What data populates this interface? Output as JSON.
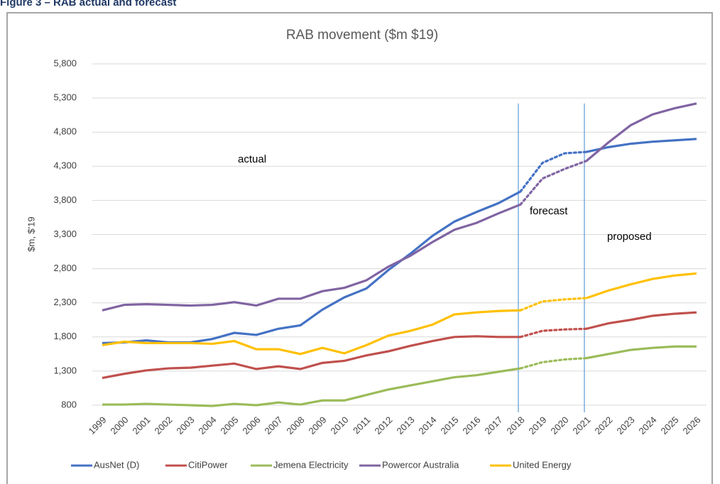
{
  "caption": "Figure 3 – RAB actual and forecast",
  "chart_data": {
    "type": "line",
    "title": "RAB movement ($m  $19)",
    "y_label": "$m, $'19",
    "categories": [
      "1999",
      "2000",
      "2001",
      "2002",
      "2003",
      "2004",
      "2005",
      "2006",
      "2007",
      "2008",
      "2009",
      "2010",
      "2011",
      "2012",
      "2013",
      "2014",
      "2015",
      "2016",
      "2017",
      "2018",
      "2019",
      "2020",
      "2021",
      "2022",
      "2023",
      "2024",
      "2025",
      "2026"
    ],
    "ylim": [
      800,
      5800
    ],
    "yticks": [
      {
        "value": 800,
        "label": "800"
      },
      {
        "value": 1300,
        "label": "1,300"
      },
      {
        "value": 1800,
        "label": "1,800"
      },
      {
        "value": 2300,
        "label": "2,300"
      },
      {
        "value": 2800,
        "label": "2,800"
      },
      {
        "value": 3300,
        "label": "3,300"
      },
      {
        "value": 3800,
        "label": "3,800"
      },
      {
        "value": 4300,
        "label": "4,300"
      },
      {
        "value": 4800,
        "label": "4,800"
      },
      {
        "value": 5300,
        "label": "5,300"
      },
      {
        "value": 5800,
        "label": "5,800"
      }
    ],
    "grid": true,
    "vlines": [
      "2018",
      "2021"
    ],
    "vline_color": "#5b9bd5",
    "annotations": [
      "actual",
      "forecast",
      "proposed"
    ],
    "legend": "bottom",
    "series": [
      {
        "name": "AusNet (D)",
        "color": "#4472c4",
        "values": [
          1710,
          1720,
          1750,
          1720,
          1720,
          1770,
          1860,
          1830,
          1920,
          1970,
          2200,
          2380,
          2510,
          2780,
          3020,
          3280,
          3490,
          3630,
          3760,
          3930,
          4350,
          4490,
          4510,
          4580,
          4630,
          4660,
          4680,
          4700
        ]
      },
      {
        "name": "CitiPower",
        "color": "#c0504d",
        "values": [
          1200,
          1260,
          1310,
          1340,
          1350,
          1380,
          1410,
          1330,
          1370,
          1330,
          1420,
          1450,
          1530,
          1590,
          1670,
          1740,
          1800,
          1810,
          1800,
          1800,
          1890,
          1910,
          1920,
          2000,
          2050,
          2110,
          2140,
          2160
        ]
      },
      {
        "name": "Jemena Electricity",
        "color": "#9bbb59",
        "values": [
          810,
          810,
          820,
          810,
          800,
          790,
          820,
          800,
          840,
          810,
          870,
          870,
          950,
          1030,
          1090,
          1150,
          1210,
          1240,
          1290,
          1340,
          1430,
          1470,
          1490,
          1550,
          1610,
          1640,
          1660,
          1660
        ]
      },
      {
        "name": "Powercor Australia",
        "color": "#8064a2",
        "values": [
          2190,
          2270,
          2280,
          2270,
          2260,
          2270,
          2310,
          2260,
          2360,
          2360,
          2470,
          2520,
          2630,
          2830,
          2990,
          3190,
          3370,
          3470,
          3610,
          3740,
          4120,
          4260,
          4380,
          4650,
          4900,
          5060,
          5150,
          5220
        ]
      },
      {
        "name": "United Energy",
        "color": "#ffc000",
        "values": [
          1680,
          1730,
          1710,
          1710,
          1710,
          1700,
          1740,
          1620,
          1620,
          1550,
          1640,
          1560,
          1680,
          1820,
          1890,
          1980,
          2130,
          2160,
          2180,
          2190,
          2320,
          2350,
          2370,
          2480,
          2570,
          2650,
          2700,
          2730
        ]
      }
    ]
  }
}
